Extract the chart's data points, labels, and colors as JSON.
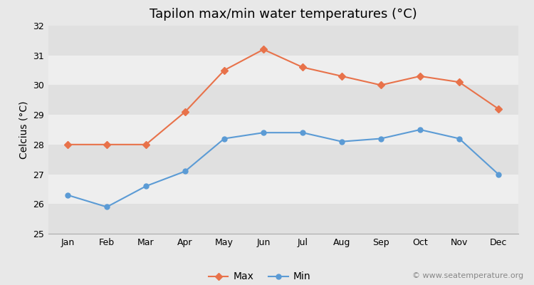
{
  "title": "Tapilon max/min water temperatures (°C)",
  "ylabel": "Celcius (°C)",
  "months": [
    "Jan",
    "Feb",
    "Mar",
    "Apr",
    "May",
    "Jun",
    "Jul",
    "Aug",
    "Sep",
    "Oct",
    "Nov",
    "Dec"
  ],
  "max_temps": [
    28.0,
    28.0,
    28.0,
    29.1,
    30.5,
    31.2,
    30.6,
    30.3,
    30.0,
    30.3,
    30.1,
    29.2
  ],
  "min_temps": [
    26.3,
    25.9,
    26.6,
    27.1,
    28.2,
    28.4,
    28.4,
    28.1,
    28.2,
    28.5,
    28.2,
    27.0
  ],
  "max_color": "#e8724a",
  "min_color": "#5b9bd5",
  "bg_color": "#e8e8e8",
  "band_light": "#eeeeee",
  "band_dark": "#e0e0e0",
  "ylim": [
    25,
    32
  ],
  "yticks": [
    25,
    26,
    27,
    28,
    29,
    30,
    31,
    32
  ],
  "legend_labels": [
    "Max",
    "Min"
  ],
  "watermark": "© www.seatemperature.org",
  "title_fontsize": 13,
  "label_fontsize": 10,
  "tick_fontsize": 9,
  "watermark_fontsize": 8
}
